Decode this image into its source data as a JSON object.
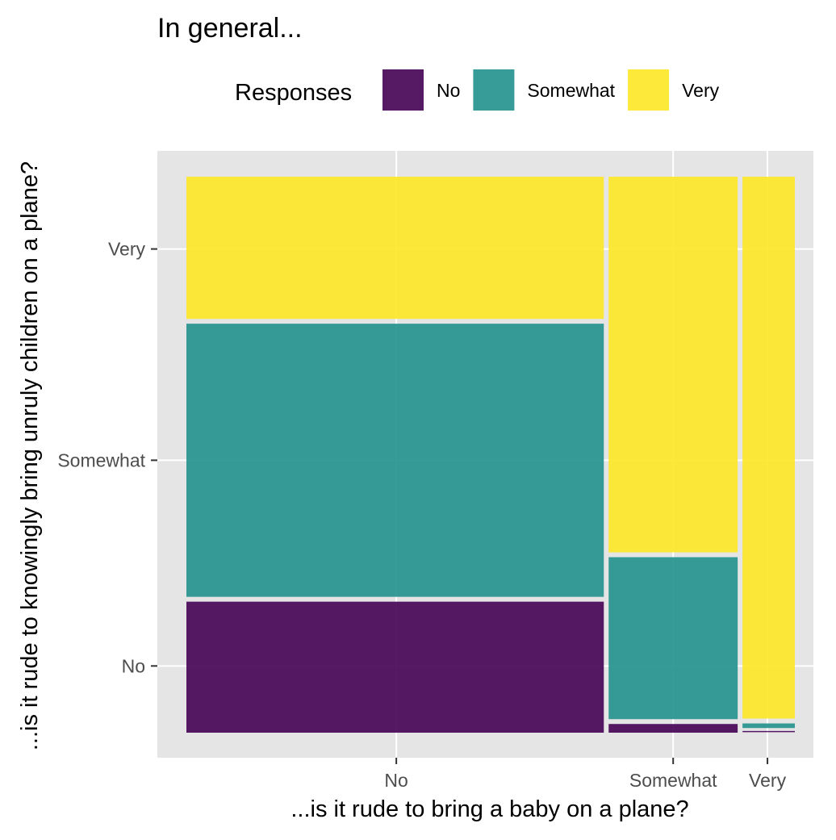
{
  "chart_data": {
    "type": "mosaic",
    "title": "In general...",
    "xlabel": "...is it rude to bring a baby on a plane?",
    "ylabel": "...is it rude to knowingly bring unruly children on a plane?",
    "x_categories": [
      "No",
      "Somewhat",
      "Very"
    ],
    "y_categories": [
      "No",
      "Somewhat",
      "Very"
    ],
    "x_proportions": [
      0.69,
      0.22,
      0.09
    ],
    "fill_levels": [
      "No",
      "Somewhat",
      "Very"
    ],
    "cells": [
      {
        "x": "No",
        "proportions": {
          "No": 0.24,
          "Somewhat": 0.5,
          "Very": 0.26
        }
      },
      {
        "x": "Somewhat",
        "proportions": {
          "No": 0.02,
          "Somewhat": 0.3,
          "Very": 0.68
        }
      },
      {
        "x": "Very",
        "proportions": {
          "No": 0.004,
          "Somewhat": 0.017,
          "Very": 0.979
        }
      }
    ],
    "legend": {
      "title": "Responses",
      "position": "top",
      "items": [
        {
          "label": "No",
          "color": "#440154"
        },
        {
          "label": "Somewhat",
          "color": "#21908C"
        },
        {
          "label": "Very",
          "color": "#FDE725"
        }
      ]
    },
    "colors": {
      "panel_background": "#E5E5E5",
      "grid": "#FFFFFF",
      "tile_outline": "#F2F2F2",
      "tick_text": "#4D4D4D",
      "text": "#000000"
    },
    "grid": true
  }
}
